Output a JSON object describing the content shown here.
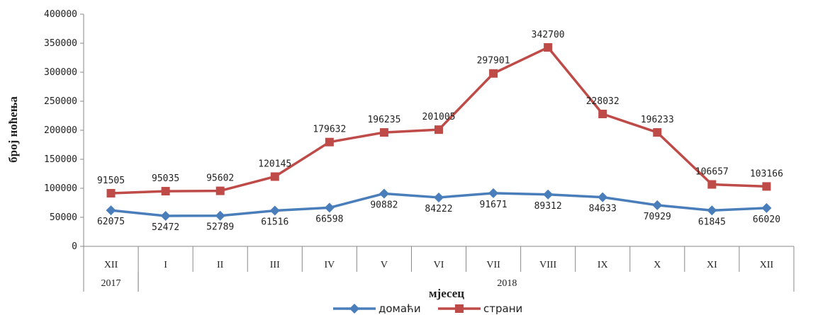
{
  "chart_data": {
    "type": "line",
    "title": "",
    "xlabel": "мјесец",
    "ylabel": "број ноћења",
    "ylim": [
      0,
      400000
    ],
    "yticks": [
      "0",
      "50000",
      "100000",
      "150000",
      "200000",
      "250000",
      "300000",
      "350000",
      "400000"
    ],
    "categories": [
      "XII",
      "I",
      "II",
      "III",
      "IV",
      "V",
      "VI",
      "VII",
      "VIII",
      "IX",
      "X",
      "XI",
      "XII"
    ],
    "year_groups": [
      {
        "label": "2017",
        "start": 0,
        "end": 0
      },
      {
        "label": "2018",
        "start": 1,
        "end": 12
      }
    ],
    "grid": false,
    "legend_position": "bottom",
    "series": [
      {
        "name": "домаћи",
        "color": "#4a7ebb",
        "marker": "diamond",
        "values": [
          62075,
          52472,
          52789,
          61516,
          66598,
          90882,
          84222,
          91671,
          89312,
          84633,
          70929,
          61845,
          66020
        ],
        "labels": [
          "62075",
          "52472",
          "52789",
          "61516",
          "66598",
          "90882",
          "84222",
          "91671",
          "89312",
          "84633",
          "70929",
          "61845",
          "66020"
        ]
      },
      {
        "name": "страни",
        "color": "#be4b48",
        "marker": "square",
        "values": [
          91505,
          95035,
          95602,
          120145,
          179632,
          196235,
          201005,
          297901,
          342700,
          228032,
          196233,
          106657,
          103166
        ],
        "labels": [
          "91505",
          "95035",
          "95602",
          "120145",
          "179632",
          "196235",
          "201005",
          "297901",
          "342700",
          "228032",
          "196233",
          "106657",
          "103166"
        ]
      }
    ]
  }
}
